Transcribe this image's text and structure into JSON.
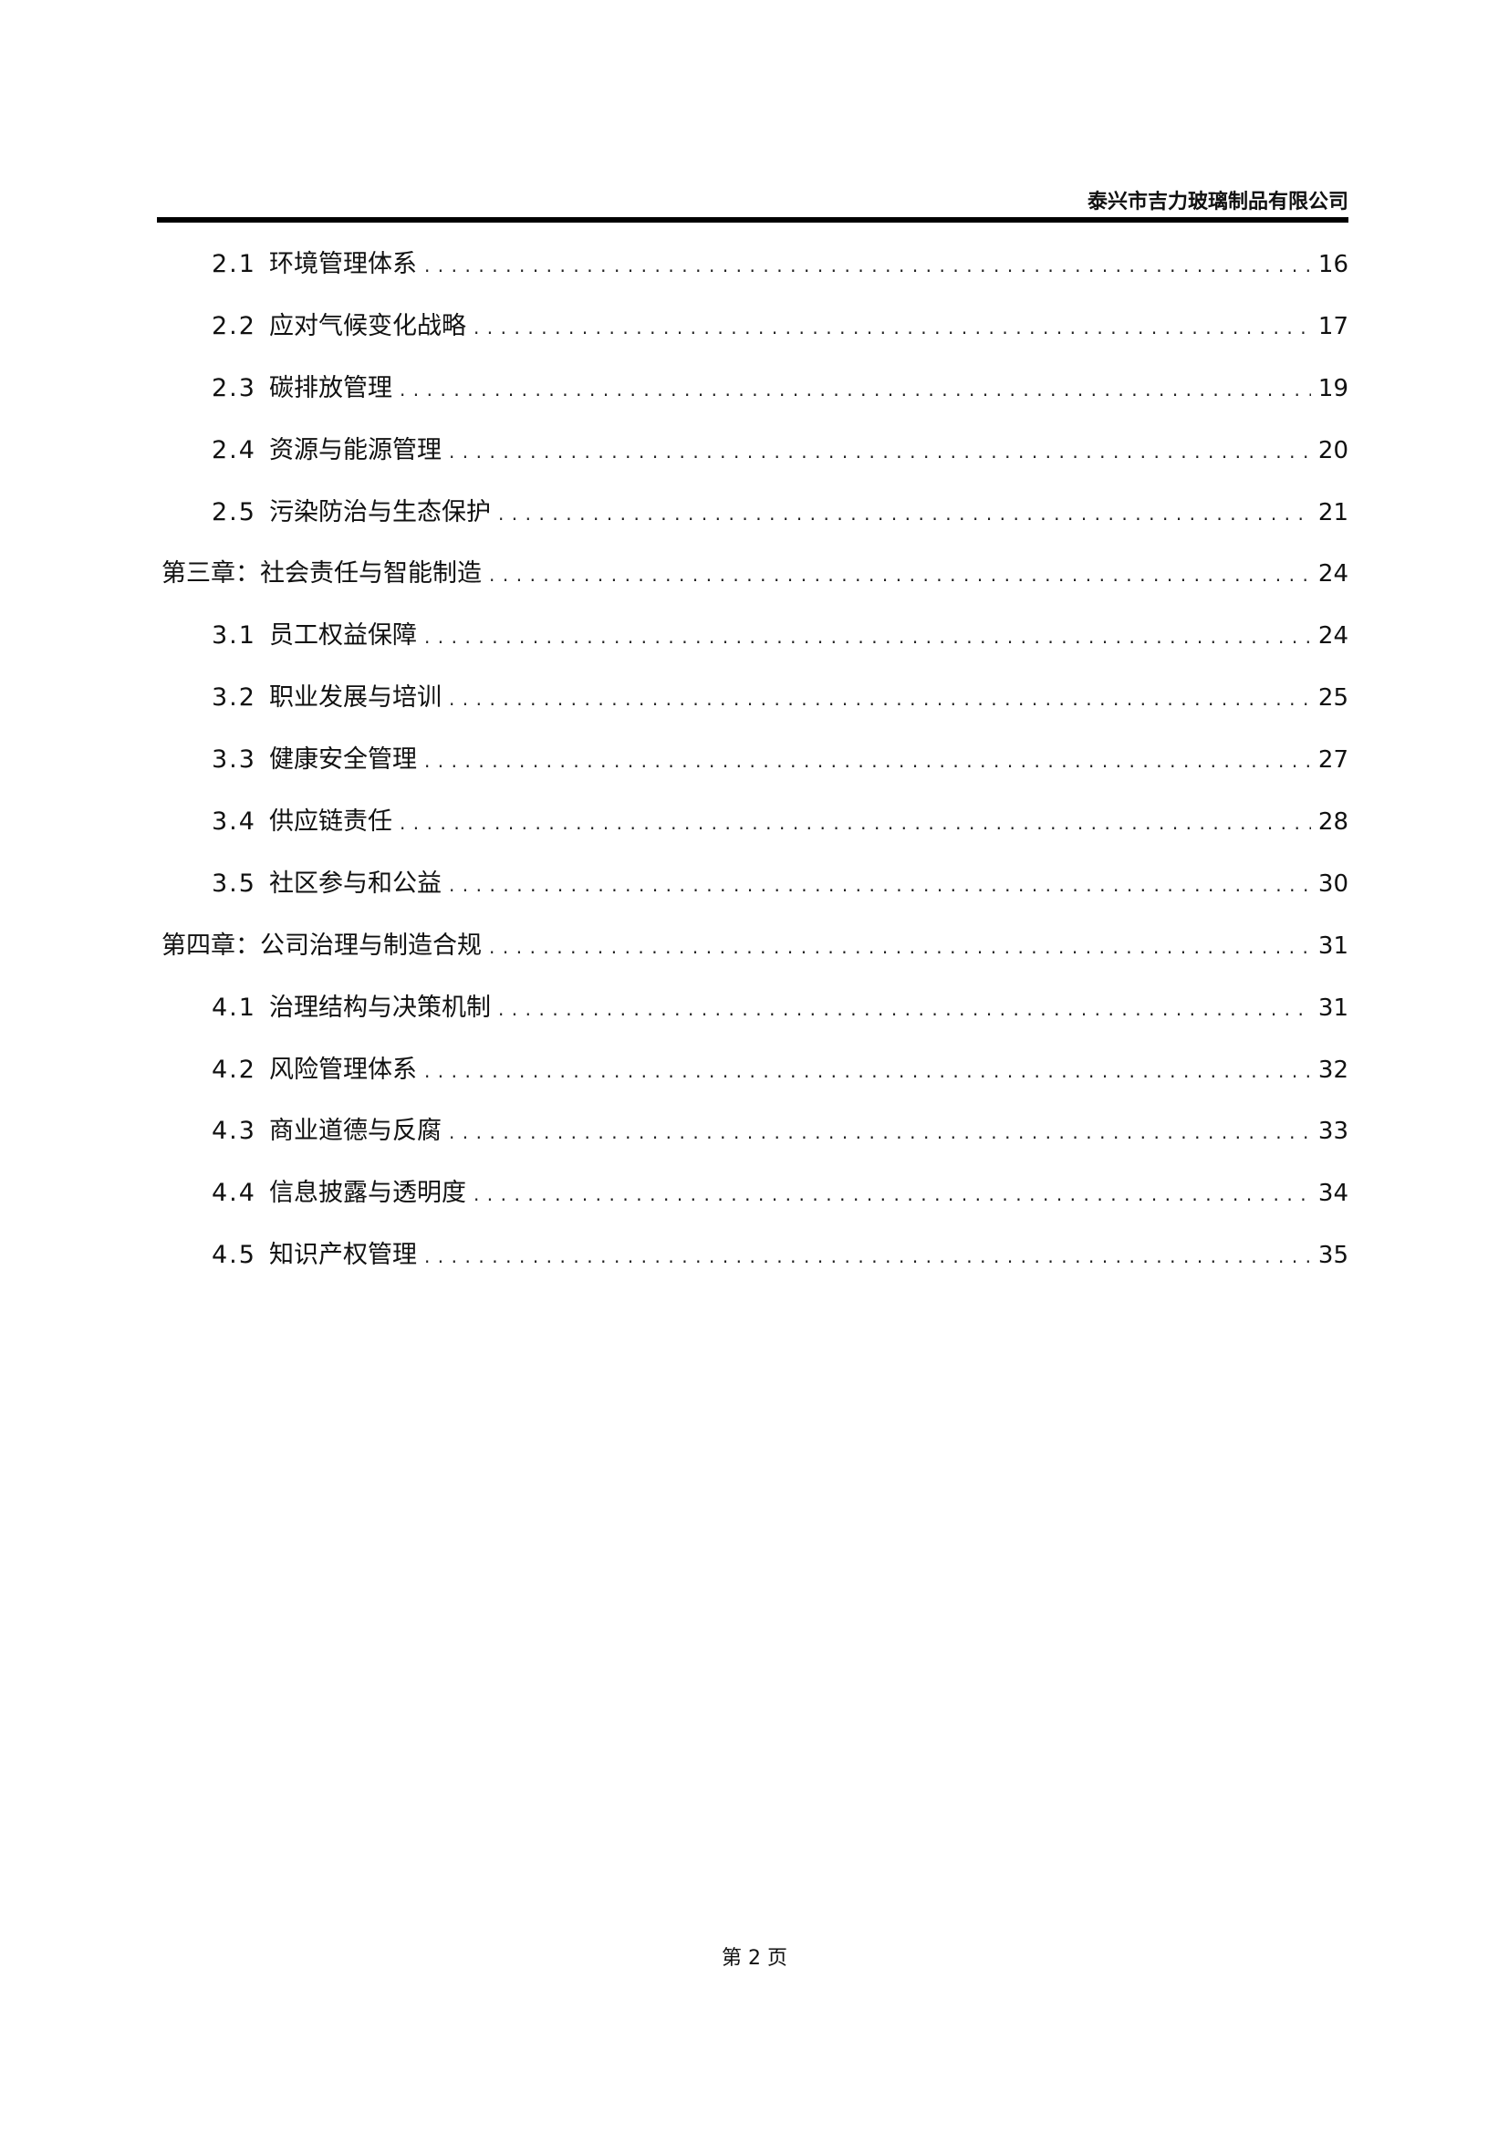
{
  "header": {
    "company": "泰兴市吉力玻璃制品有限公司"
  },
  "toc": [
    {
      "level": 2,
      "num": "2.1",
      "title": "环境管理体系",
      "page": "16"
    },
    {
      "level": 2,
      "num": "2.2",
      "title": "应对气候变化战略",
      "page": "17"
    },
    {
      "level": 2,
      "num": "2.3",
      "title": "碳排放管理",
      "page": "19"
    },
    {
      "level": 2,
      "num": "2.4",
      "title": "资源与能源管理",
      "page": "20"
    },
    {
      "level": 2,
      "num": "2.5",
      "title": "污染防治与生态保护",
      "page": "21"
    },
    {
      "level": 1,
      "num": "",
      "title": "第三章：社会责任与智能制造",
      "page": "24"
    },
    {
      "level": 2,
      "num": "3.1",
      "title": "员工权益保障",
      "page": "24"
    },
    {
      "level": 2,
      "num": "3.2",
      "title": "职业发展与培训",
      "page": "25"
    },
    {
      "level": 2,
      "num": "3.3",
      "title": "健康安全管理",
      "page": "27"
    },
    {
      "level": 2,
      "num": "3.4",
      "title": "供应链责任",
      "page": "28"
    },
    {
      "level": 2,
      "num": "3.5",
      "title": "社区参与和公益",
      "page": "30"
    },
    {
      "level": 1,
      "num": "",
      "title": "第四章：公司治理与制造合规",
      "page": "31"
    },
    {
      "level": 2,
      "num": "4.1",
      "title": "治理结构与决策机制",
      "page": "31"
    },
    {
      "level": 2,
      "num": "4.2",
      "title": "风险管理体系",
      "page": "32"
    },
    {
      "level": 2,
      "num": "4.3",
      "title": "商业道德与反腐",
      "page": "33"
    },
    {
      "level": 2,
      "num": "4.4",
      "title": "信息披露与透明度",
      "page": "34"
    },
    {
      "level": 2,
      "num": "4.5",
      "title": "知识产权管理",
      "page": "35"
    }
  ],
  "footer": {
    "page_label": "第 2 页"
  }
}
